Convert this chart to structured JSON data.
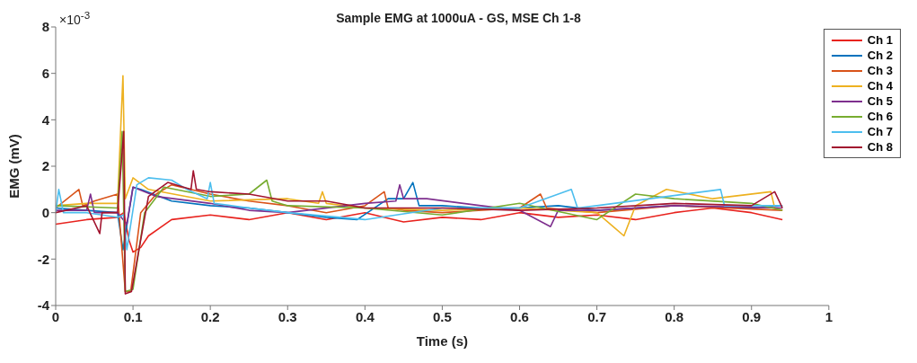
{
  "chart_data": {
    "type": "line",
    "title": "Sample EMG at 1000uA - GS, MSE Ch 1-8",
    "xlabel": "Time (s)",
    "ylabel": "EMG (mV)",
    "annotations": [
      "×10$^{-3}$"
    ],
    "xlim": [
      0,
      1
    ],
    "xticks": [
      0,
      0.1,
      0.2,
      0.3,
      0.4,
      0.5,
      0.6,
      0.7,
      0.8,
      0.9,
      1
    ],
    "ylim": [
      -4,
      8
    ],
    "yticks": [
      -4,
      -2,
      0,
      2,
      4,
      6,
      8
    ],
    "grid": false,
    "legend": "top right",
    "marker": "none",
    "line_style": "solid",
    "series": [
      {
        "name": "Ch 1",
        "color": "#e8231e",
        "x": [
          0,
          0.04,
          0.08,
          0.088,
          0.095,
          0.1,
          0.11,
          0.12,
          0.15,
          0.2,
          0.25,
          0.3,
          0.35,
          0.4,
          0.45,
          0.5,
          0.55,
          0.6,
          0.65,
          0.7,
          0.75,
          0.8,
          0.85,
          0.9,
          0.94
        ],
        "values": [
          -0.5,
          -0.3,
          -0.2,
          0,
          -1.2,
          -1.7,
          -1.5,
          -1.0,
          -0.3,
          -0.1,
          -0.3,
          0,
          -0.3,
          0,
          -0.4,
          -0.2,
          -0.3,
          0,
          -0.2,
          -0.1,
          -0.3,
          0,
          0.2,
          0,
          -0.3
        ]
      },
      {
        "name": "Ch 2",
        "color": "#0072bd",
        "x": [
          0,
          0.04,
          0.08,
          0.087,
          0.1,
          0.11,
          0.15,
          0.2,
          0.25,
          0.3,
          0.35,
          0.39,
          0.43,
          0.45,
          0.462,
          0.47,
          0.5,
          0.55,
          0.6,
          0.65,
          0.7,
          0.75,
          0.8,
          0.9,
          0.94
        ],
        "values": [
          0.2,
          0.1,
          0,
          -1.6,
          1.1,
          1.0,
          0.5,
          0.3,
          0.2,
          0,
          -0.2,
          -0.3,
          0.6,
          0.6,
          1.3,
          0.3,
          0.3,
          0.2,
          0.2,
          0.3,
          0.1,
          0.2,
          0.3,
          0.2,
          0.3
        ]
      },
      {
        "name": "Ch 3",
        "color": "#d95319",
        "x": [
          0,
          0.03,
          0.035,
          0.05,
          0.08,
          0.09,
          0.097,
          0.11,
          0.13,
          0.15,
          0.2,
          0.25,
          0.3,
          0.35,
          0.4,
          0.425,
          0.43,
          0.45,
          0.5,
          0.6,
          0.627,
          0.635,
          0.7,
          0.8,
          0.94
        ],
        "values": [
          0.2,
          1.0,
          0.3,
          0.5,
          0.8,
          -3.4,
          -3.4,
          0,
          0.8,
          1.2,
          0.8,
          0.5,
          0.3,
          0,
          0.3,
          0.9,
          0.2,
          0.1,
          0,
          0.2,
          0.8,
          0.2,
          0,
          0.3,
          0.1
        ]
      },
      {
        "name": "Ch 4",
        "color": "#edb120",
        "x": [
          0,
          0.04,
          0.08,
          0.087,
          0.09,
          0.1,
          0.12,
          0.2,
          0.3,
          0.34,
          0.345,
          0.35,
          0.4,
          0.5,
          0.6,
          0.7,
          0.735,
          0.75,
          0.79,
          0.85,
          0.925,
          0.93,
          0.94
        ],
        "values": [
          0.3,
          0.4,
          0.4,
          5.9,
          0.6,
          1.5,
          1.0,
          0.5,
          0.6,
          0.4,
          0.9,
          0.4,
          0.2,
          0.1,
          0.2,
          0,
          -1.0,
          0.3,
          1.0,
          0.6,
          0.9,
          0.2,
          0.1
        ]
      },
      {
        "name": "Ch 5",
        "color": "#7e2f8e",
        "x": [
          0,
          0.04,
          0.045,
          0.05,
          0.08,
          0.092,
          0.1,
          0.13,
          0.2,
          0.25,
          0.3,
          0.4,
          0.44,
          0.445,
          0.45,
          0.48,
          0.55,
          0.6,
          0.64,
          0.65,
          0.7,
          0.8,
          0.94
        ],
        "values": [
          0.1,
          0.1,
          0.8,
          0,
          0,
          -0.5,
          1.1,
          0.7,
          0.4,
          0.1,
          0,
          0.4,
          0.5,
          1.2,
          0.6,
          0.6,
          0.3,
          0.1,
          -0.6,
          0.1,
          0.1,
          0.3,
          0.2
        ]
      },
      {
        "name": "Ch 6",
        "color": "#77ac30",
        "x": [
          0,
          0.08,
          0.086,
          0.09,
          0.1,
          0.115,
          0.14,
          0.2,
          0.25,
          0.273,
          0.28,
          0.3,
          0.4,
          0.5,
          0.6,
          0.7,
          0.75,
          0.8,
          0.9,
          0.94
        ],
        "values": [
          0.3,
          0.2,
          3.5,
          -3.4,
          -3.3,
          0,
          1.1,
          0.7,
          0.8,
          1.4,
          0.5,
          0.3,
          0.2,
          -0.1,
          0.4,
          -0.3,
          0.8,
          0.6,
          0.4,
          0.1
        ]
      },
      {
        "name": "Ch 7",
        "color": "#4dbeee",
        "x": [
          0,
          0.004,
          0.01,
          0.04,
          0.08,
          0.088,
          0.092,
          0.105,
          0.12,
          0.15,
          0.17,
          0.196,
          0.2,
          0.205,
          0.25,
          0.3,
          0.4,
          0.5,
          0.6,
          0.667,
          0.675,
          0.7,
          0.86,
          0.865,
          0.94
        ],
        "values": [
          0,
          1.0,
          0,
          0,
          -0.2,
          -0.1,
          -1.6,
          1.2,
          1.5,
          1.4,
          1.0,
          0.6,
          1.3,
          0.4,
          0.2,
          0,
          -0.3,
          0.2,
          0.2,
          1.0,
          0.2,
          0.3,
          1.0,
          0.3,
          0.3
        ]
      },
      {
        "name": "Ch 8",
        "color": "#a2142f",
        "x": [
          0,
          0.04,
          0.057,
          0.06,
          0.08,
          0.088,
          0.09,
          0.098,
          0.12,
          0.145,
          0.175,
          0.178,
          0.182,
          0.2,
          0.25,
          0.3,
          0.35,
          0.4,
          0.5,
          0.6,
          0.7,
          0.8,
          0.9,
          0.93,
          0.94
        ],
        "values": [
          0,
          0.3,
          -0.9,
          0,
          0,
          3.5,
          -3.5,
          -3.4,
          0.7,
          1.3,
          1.0,
          1.8,
          1.0,
          0.9,
          0.8,
          0.5,
          0.5,
          0.2,
          0.2,
          0.1,
          0.2,
          0.4,
          0.3,
          0.9,
          0.2
        ]
      }
    ]
  }
}
